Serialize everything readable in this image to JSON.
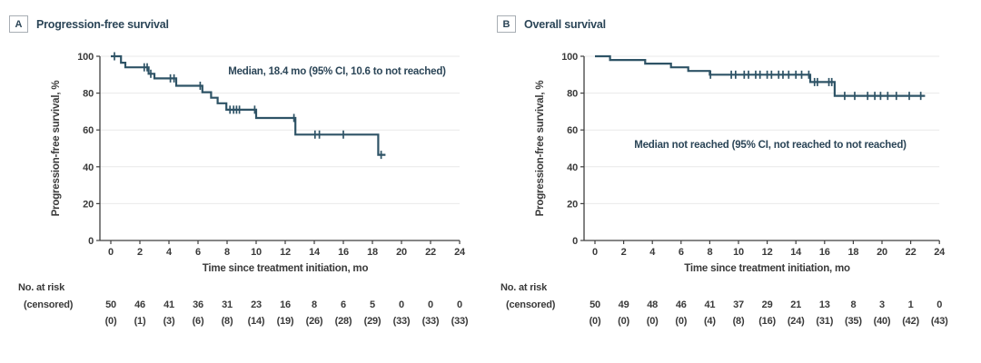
{
  "chart_data": [
    {
      "type": "line",
      "subtype": "kaplan-meier-step",
      "panel_label": "A",
      "title": "Progression-free survival",
      "annotation": "Median, 18.4 mo (95% CI, 10.6 to not reached)",
      "xlabel": "Time since treatment initiation, mo",
      "ylabel": "Progression-free survival, %",
      "xlim": [
        0,
        24
      ],
      "ylim": [
        0,
        100
      ],
      "xticks": [
        0,
        2,
        4,
        6,
        8,
        10,
        12,
        14,
        16,
        18,
        20,
        22,
        24
      ],
      "yticks": [
        0,
        20,
        40,
        60,
        80,
        100
      ],
      "grid": "horizontal",
      "line_color": "#2e5366",
      "start_level": 100,
      "steps": [
        [
          0.7,
          96.5
        ],
        [
          1.0,
          94
        ],
        [
          2.6,
          90.5
        ],
        [
          3.0,
          88
        ],
        [
          4.5,
          84
        ],
        [
          6.3,
          80.5
        ],
        [
          6.9,
          77.5
        ],
        [
          7.35,
          74.5
        ],
        [
          7.95,
          71
        ],
        [
          10.0,
          66.5
        ],
        [
          12.7,
          57.5
        ],
        [
          18.4,
          46.5
        ]
      ],
      "end_time": 18.9,
      "censor_marks": [
        [
          0.25,
          100
        ],
        [
          2.3,
          94
        ],
        [
          2.5,
          94
        ],
        [
          2.75,
          90.5
        ],
        [
          4.1,
          88
        ],
        [
          4.35,
          88
        ],
        [
          6.15,
          84
        ],
        [
          8.2,
          71
        ],
        [
          8.45,
          71
        ],
        [
          8.65,
          71
        ],
        [
          8.85,
          71
        ],
        [
          9.9,
          71
        ],
        [
          12.6,
          66.5
        ],
        [
          14.05,
          57.5
        ],
        [
          14.35,
          57.5
        ],
        [
          16.0,
          57.5
        ],
        [
          18.6,
          46.5
        ]
      ],
      "risk_label_line1": "No. at risk",
      "risk_label_line2": "(censored)",
      "at_risk": [
        50,
        46,
        41,
        36,
        31,
        23,
        16,
        8,
        6,
        5,
        0,
        0,
        0
      ],
      "censored_counts": [
        0,
        1,
        3,
        6,
        8,
        14,
        19,
        26,
        28,
        29,
        33,
        33,
        33
      ]
    },
    {
      "type": "line",
      "subtype": "kaplan-meier-step",
      "panel_label": "B",
      "title": "Overall survival",
      "annotation": "Median not reached (95% CI, not reached to not reached)",
      "xlabel": "Time since treatment initiation, mo",
      "ylabel": "Progression-free survival, %",
      "xlim": [
        0,
        24
      ],
      "ylim": [
        0,
        100
      ],
      "xticks": [
        0,
        2,
        4,
        6,
        8,
        10,
        12,
        14,
        16,
        18,
        20,
        22,
        24
      ],
      "yticks": [
        0,
        20,
        40,
        60,
        80,
        100
      ],
      "grid": "horizontal",
      "line_color": "#2e5366",
      "start_level": 100,
      "steps": [
        [
          1.05,
          98
        ],
        [
          3.5,
          96
        ],
        [
          5.3,
          94
        ],
        [
          6.5,
          92
        ],
        [
          8.0,
          90
        ],
        [
          15.0,
          86
        ],
        [
          16.7,
          78.5
        ]
      ],
      "end_time": 23.0,
      "censor_marks": [
        [
          8.05,
          90
        ],
        [
          9.5,
          90
        ],
        [
          9.8,
          90
        ],
        [
          10.4,
          90
        ],
        [
          10.7,
          90
        ],
        [
          11.2,
          90
        ],
        [
          11.5,
          90
        ],
        [
          12.0,
          90
        ],
        [
          12.3,
          90
        ],
        [
          12.8,
          90
        ],
        [
          13.1,
          90
        ],
        [
          13.5,
          90
        ],
        [
          14.0,
          90
        ],
        [
          14.4,
          90
        ],
        [
          14.9,
          90
        ],
        [
          15.3,
          86
        ],
        [
          15.5,
          86
        ],
        [
          16.3,
          86
        ],
        [
          16.5,
          86
        ],
        [
          17.4,
          78.5
        ],
        [
          18.1,
          78.5
        ],
        [
          19.0,
          78.5
        ],
        [
          19.5,
          78.5
        ],
        [
          19.9,
          78.5
        ],
        [
          20.4,
          78.5
        ],
        [
          21.0,
          78.5
        ],
        [
          21.9,
          78.5
        ],
        [
          22.7,
          78.5
        ]
      ],
      "risk_label_line1": "No. at risk",
      "risk_label_line2": "(censored)",
      "at_risk": [
        50,
        49,
        48,
        46,
        41,
        37,
        29,
        21,
        13,
        8,
        3,
        1,
        0
      ],
      "censored_counts": [
        0,
        0,
        0,
        0,
        4,
        8,
        16,
        24,
        31,
        35,
        40,
        42,
        43
      ]
    }
  ]
}
